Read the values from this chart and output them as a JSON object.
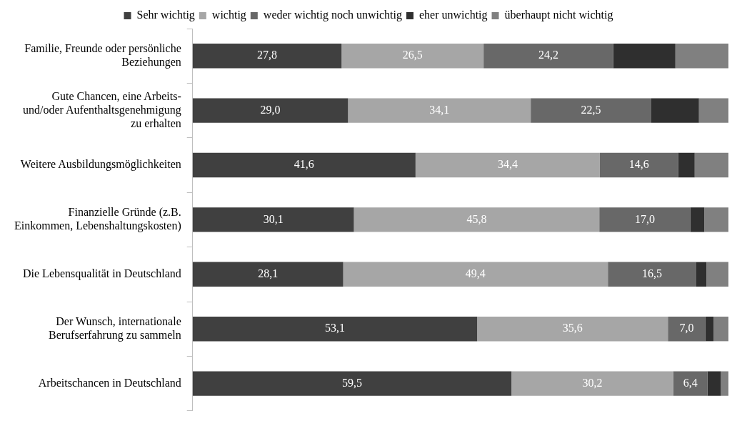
{
  "chart_data": {
    "type": "bar",
    "orientation": "horizontal",
    "stacked": true,
    "legend": "top",
    "tick_labels": "y",
    "grid": false,
    "xlim": [
      0,
      100
    ],
    "categories": [
      "Familie, Freunde oder persönliche\nBeziehungen",
      "Gute Chancen, eine Arbeits-\nund/oder Aufenthaltsgenehmigung\nzu erhalten",
      "Weitere Ausbildungsmöglichkeiten",
      "Finanzielle Gründe (z.B.\nEinkommen, Lebenshaltungskosten)",
      "Die Lebensqualität in Deutschland",
      "Der Wunsch, internationale\nBerufserfahrung zu sammeln",
      "Arbeitschancen in Deutschland"
    ],
    "series": [
      {
        "name": "Sehr wichtig",
        "color": "#404040",
        "values": [
          27.8,
          29.0,
          41.6,
          30.1,
          28.1,
          53.1,
          59.5
        ],
        "value_labels": [
          "27,8",
          "29,0",
          "41,6",
          "30,1",
          "28,1",
          "53,1",
          "59,5"
        ]
      },
      {
        "name": "wichtig",
        "color": "#a6a6a6",
        "values": [
          26.5,
          34.1,
          34.4,
          45.8,
          49.4,
          35.6,
          30.2
        ],
        "value_labels": [
          "26,5",
          "34,1",
          "34,4",
          "45,8",
          "49,4",
          "35,6",
          "30,2"
        ]
      },
      {
        "name": "weder wichtig noch unwichtig",
        "color": "#686868",
        "values": [
          24.2,
          22.5,
          14.6,
          17.0,
          16.5,
          7.0,
          6.4
        ],
        "value_labels": [
          "24,2",
          "22,5",
          "14,6",
          "17,0",
          "16,5",
          "7,0",
          "6,4"
        ]
      },
      {
        "name": "eher unwichtig",
        "color": "#2f2f2f",
        "values": [
          11.6,
          8.9,
          3.1,
          2.6,
          1.9,
          1.5,
          2.5
        ]
      },
      {
        "name": "überhaupt nicht wichtig",
        "color": "#808080",
        "values": [
          9.9,
          5.5,
          6.3,
          4.5,
          4.1,
          2.8,
          1.4
        ]
      }
    ]
  }
}
